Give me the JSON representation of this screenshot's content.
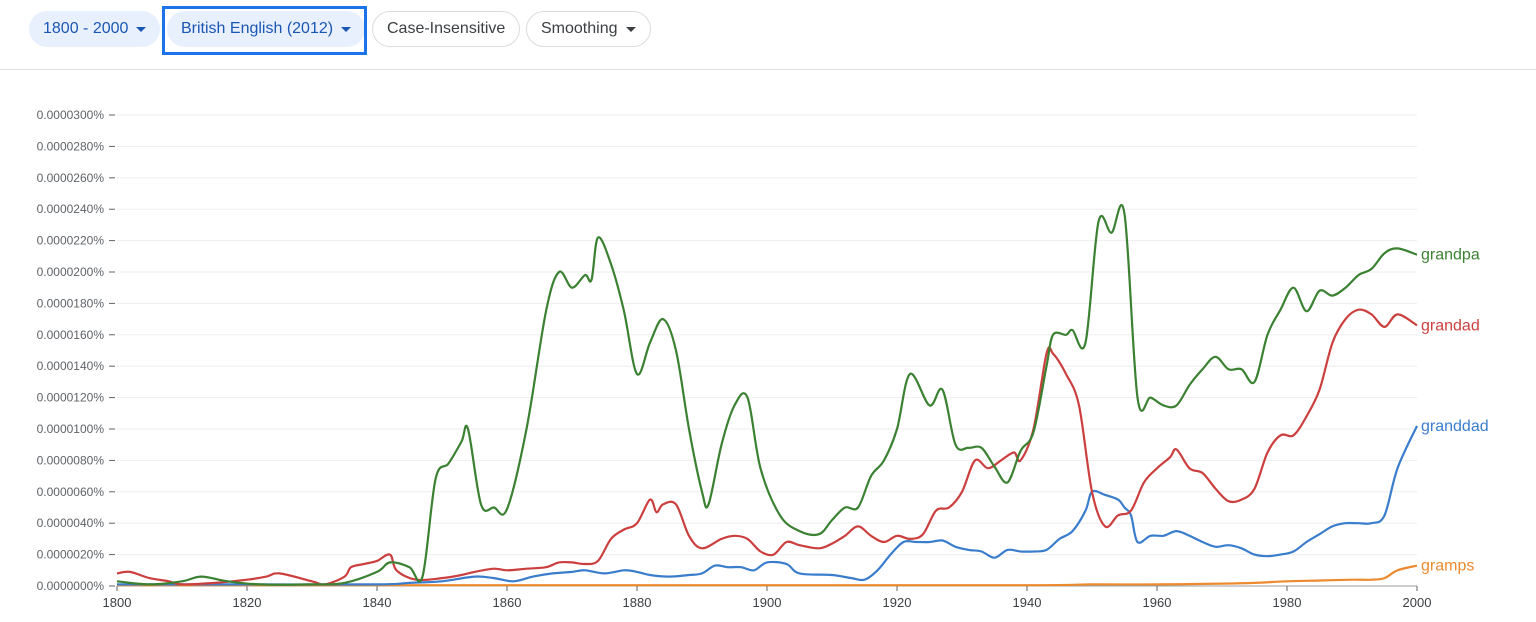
{
  "toolbar": {
    "year_range": "1800 - 2000",
    "corpus": "British English (2012)",
    "case_option": "Case-Insensitive",
    "smoothing": "Smoothing"
  },
  "colors": {
    "grandpa": "#3b8132",
    "grandad": "#cc3f3f",
    "granddad": "#3a7dcc",
    "gramps": "#ec8a2f"
  },
  "chart_data": {
    "type": "line",
    "title": "",
    "xlabel": "",
    "ylabel": "",
    "xlim": [
      1800,
      2000
    ],
    "ylim": [
      0,
      3e-07
    ],
    "x_ticks": [
      1800,
      1820,
      1840,
      1860,
      1880,
      1900,
      1920,
      1940,
      1960,
      1980,
      2000
    ],
    "y_ticks": [
      "0.0000000%",
      "0.0000020%",
      "0.0000040%",
      "0.0000060%",
      "0.0000080%",
      "0.0000100%",
      "0.0000120%",
      "0.0000140%",
      "0.0000160%",
      "0.0000180%",
      "0.0000200%",
      "0.0000220%",
      "0.0000240%",
      "0.0000260%",
      "0.0000280%",
      "0.0000300%"
    ],
    "legend": "inline-right",
    "grid": true,
    "series": [
      {
        "name": "grandpa",
        "color": "#3b8132",
        "points": [
          [
            1800,
            3
          ],
          [
            1805,
            1
          ],
          [
            1810,
            3
          ],
          [
            1813,
            6
          ],
          [
            1817,
            3
          ],
          [
            1822,
            1
          ],
          [
            1830,
            1
          ],
          [
            1835,
            2
          ],
          [
            1840,
            9
          ],
          [
            1842,
            15
          ],
          [
            1845,
            12
          ],
          [
            1847,
            6
          ],
          [
            1849,
            68
          ],
          [
            1851,
            78
          ],
          [
            1853,
            92
          ],
          [
            1854,
            100
          ],
          [
            1856,
            52
          ],
          [
            1858,
            50
          ],
          [
            1860,
            49
          ],
          [
            1863,
            100
          ],
          [
            1866,
            175
          ],
          [
            1868,
            200
          ],
          [
            1870,
            190
          ],
          [
            1872,
            198
          ],
          [
            1873,
            195
          ],
          [
            1874,
            222
          ],
          [
            1876,
            205
          ],
          [
            1878,
            175
          ],
          [
            1880,
            135
          ],
          [
            1882,
            155
          ],
          [
            1884,
            170
          ],
          [
            1886,
            150
          ],
          [
            1888,
            100
          ],
          [
            1890,
            60
          ],
          [
            1891,
            52
          ],
          [
            1893,
            90
          ],
          [
            1895,
            115
          ],
          [
            1897,
            120
          ],
          [
            1899,
            75
          ],
          [
            1902,
            45
          ],
          [
            1905,
            35
          ],
          [
            1908,
            33
          ],
          [
            1910,
            42
          ],
          [
            1912,
            50
          ],
          [
            1914,
            50
          ],
          [
            1916,
            70
          ],
          [
            1918,
            80
          ],
          [
            1920,
            100
          ],
          [
            1922,
            135
          ],
          [
            1925,
            115
          ],
          [
            1927,
            125
          ],
          [
            1929,
            90
          ],
          [
            1931,
            88
          ],
          [
            1933,
            88
          ],
          [
            1935,
            76
          ],
          [
            1937,
            66
          ],
          [
            1939,
            86
          ],
          [
            1941,
            98
          ],
          [
            1943,
            140
          ],
          [
            1944,
            160
          ],
          [
            1946,
            160
          ],
          [
            1947,
            163
          ],
          [
            1949,
            155
          ],
          [
            1951,
            232
          ],
          [
            1953,
            225
          ],
          [
            1955,
            237
          ],
          [
            1957,
            120
          ],
          [
            1959,
            120
          ],
          [
            1961,
            115
          ],
          [
            1963,
            115
          ],
          [
            1965,
            128
          ],
          [
            1967,
            138
          ],
          [
            1969,
            146
          ],
          [
            1971,
            138
          ],
          [
            1973,
            138
          ],
          [
            1975,
            130
          ],
          [
            1977,
            160
          ],
          [
            1979,
            176
          ],
          [
            1981,
            190
          ],
          [
            1983,
            175
          ],
          [
            1985,
            188
          ],
          [
            1987,
            185
          ],
          [
            1989,
            190
          ],
          [
            1991,
            198
          ],
          [
            1993,
            202
          ],
          [
            1995,
            212
          ],
          [
            1997,
            215
          ],
          [
            2000,
            211
          ]
        ]
      },
      {
        "name": "grandad",
        "color": "#cc3f3f",
        "points": [
          [
            1800,
            8
          ],
          [
            1802,
            9
          ],
          [
            1805,
            5
          ],
          [
            1808,
            3
          ],
          [
            1810,
            1
          ],
          [
            1815,
            2
          ],
          [
            1820,
            4
          ],
          [
            1823,
            6
          ],
          [
            1825,
            8
          ],
          [
            1830,
            3
          ],
          [
            1832,
            1
          ],
          [
            1835,
            6
          ],
          [
            1836,
            12
          ],
          [
            1838,
            14
          ],
          [
            1840,
            16
          ],
          [
            1842,
            20
          ],
          [
            1843,
            10
          ],
          [
            1846,
            4
          ],
          [
            1850,
            5
          ],
          [
            1853,
            7
          ],
          [
            1855,
            9
          ],
          [
            1858,
            11
          ],
          [
            1860,
            10
          ],
          [
            1863,
            11
          ],
          [
            1866,
            12
          ],
          [
            1868,
            15
          ],
          [
            1870,
            15
          ],
          [
            1872,
            14
          ],
          [
            1874,
            16
          ],
          [
            1876,
            30
          ],
          [
            1878,
            36
          ],
          [
            1880,
            40
          ],
          [
            1882,
            55
          ],
          [
            1883,
            47
          ],
          [
            1884,
            52
          ],
          [
            1886,
            52
          ],
          [
            1888,
            32
          ],
          [
            1890,
            24
          ],
          [
            1893,
            30
          ],
          [
            1895,
            32
          ],
          [
            1897,
            30
          ],
          [
            1899,
            22
          ],
          [
            1901,
            20
          ],
          [
            1903,
            28
          ],
          [
            1905,
            26
          ],
          [
            1908,
            24
          ],
          [
            1910,
            27
          ],
          [
            1912,
            32
          ],
          [
            1914,
            38
          ],
          [
            1916,
            32
          ],
          [
            1918,
            28
          ],
          [
            1920,
            32
          ],
          [
            1922,
            30
          ],
          [
            1924,
            33
          ],
          [
            1926,
            48
          ],
          [
            1928,
            50
          ],
          [
            1930,
            60
          ],
          [
            1932,
            80
          ],
          [
            1934,
            75
          ],
          [
            1936,
            80
          ],
          [
            1938,
            85
          ],
          [
            1939,
            80
          ],
          [
            1941,
            100
          ],
          [
            1943,
            148
          ],
          [
            1944,
            148
          ],
          [
            1946,
            135
          ],
          [
            1948,
            115
          ],
          [
            1950,
            60
          ],
          [
            1952,
            38
          ],
          [
            1954,
            45
          ],
          [
            1956,
            48
          ],
          [
            1958,
            66
          ],
          [
            1960,
            75
          ],
          [
            1962,
            82
          ],
          [
            1963,
            87
          ],
          [
            1965,
            75
          ],
          [
            1967,
            72
          ],
          [
            1969,
            62
          ],
          [
            1971,
            54
          ],
          [
            1973,
            55
          ],
          [
            1975,
            62
          ],
          [
            1977,
            85
          ],
          [
            1979,
            96
          ],
          [
            1981,
            96
          ],
          [
            1983,
            108
          ],
          [
            1985,
            125
          ],
          [
            1987,
            155
          ],
          [
            1989,
            170
          ],
          [
            1991,
            176
          ],
          [
            1993,
            173
          ],
          [
            1995,
            165
          ],
          [
            1997,
            173
          ],
          [
            2000,
            166
          ]
        ]
      },
      {
        "name": "granddad",
        "color": "#3a7dcc",
        "points": [
          [
            1800,
            1
          ],
          [
            1820,
            1
          ],
          [
            1840,
            1
          ],
          [
            1845,
            2
          ],
          [
            1850,
            3
          ],
          [
            1855,
            6
          ],
          [
            1858,
            5
          ],
          [
            1861,
            3
          ],
          [
            1864,
            6
          ],
          [
            1867,
            8
          ],
          [
            1870,
            9
          ],
          [
            1872,
            10
          ],
          [
            1875,
            8
          ],
          [
            1878,
            10
          ],
          [
            1880,
            9
          ],
          [
            1882,
            7
          ],
          [
            1885,
            6
          ],
          [
            1888,
            7
          ],
          [
            1890,
            8
          ],
          [
            1892,
            13
          ],
          [
            1894,
            12
          ],
          [
            1896,
            12
          ],
          [
            1898,
            10
          ],
          [
            1900,
            15
          ],
          [
            1903,
            14
          ],
          [
            1905,
            8
          ],
          [
            1910,
            7
          ],
          [
            1913,
            5
          ],
          [
            1915,
            4
          ],
          [
            1917,
            10
          ],
          [
            1919,
            20
          ],
          [
            1921,
            28
          ],
          [
            1923,
            28
          ],
          [
            1925,
            28
          ],
          [
            1927,
            29
          ],
          [
            1929,
            25
          ],
          [
            1931,
            23
          ],
          [
            1933,
            22
          ],
          [
            1935,
            18
          ],
          [
            1937,
            23
          ],
          [
            1939,
            22
          ],
          [
            1941,
            22
          ],
          [
            1943,
            23
          ],
          [
            1945,
            30
          ],
          [
            1947,
            35
          ],
          [
            1949,
            48
          ],
          [
            1950,
            60
          ],
          [
            1952,
            58
          ],
          [
            1954,
            55
          ],
          [
            1955,
            50
          ],
          [
            1956,
            45
          ],
          [
            1957,
            28
          ],
          [
            1959,
            32
          ],
          [
            1961,
            32
          ],
          [
            1963,
            35
          ],
          [
            1965,
            32
          ],
          [
            1967,
            28
          ],
          [
            1969,
            25
          ],
          [
            1971,
            26
          ],
          [
            1973,
            24
          ],
          [
            1975,
            20
          ],
          [
            1977,
            19
          ],
          [
            1979,
            20
          ],
          [
            1981,
            22
          ],
          [
            1983,
            28
          ],
          [
            1985,
            33
          ],
          [
            1987,
            38
          ],
          [
            1989,
            40
          ],
          [
            1991,
            40
          ],
          [
            1993,
            40
          ],
          [
            1995,
            45
          ],
          [
            1997,
            75
          ],
          [
            2000,
            102
          ]
        ]
      },
      {
        "name": "gramps",
        "color": "#ec8a2f",
        "points": [
          [
            1800,
            0.5
          ],
          [
            1850,
            0.5
          ],
          [
            1900,
            0.5
          ],
          [
            1940,
            0.5
          ],
          [
            1950,
            1
          ],
          [
            1960,
            1
          ],
          [
            1970,
            1.5
          ],
          [
            1975,
            2
          ],
          [
            1980,
            3
          ],
          [
            1985,
            3.5
          ],
          [
            1990,
            4
          ],
          [
            1993,
            4
          ],
          [
            1995,
            5
          ],
          [
            1997,
            10
          ],
          [
            2000,
            13
          ]
        ]
      }
    ]
  }
}
